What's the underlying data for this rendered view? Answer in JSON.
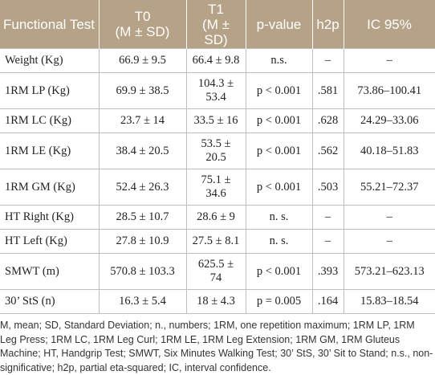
{
  "table": {
    "header": [
      "Functional Test",
      "T0\n(M ± SD)",
      "T1\n(M ± SD)",
      "p-value",
      "h2p",
      "IC 95%"
    ],
    "rows": [
      [
        "Weight (Kg)",
        "66.9 ± 9.5",
        "66.4 ± 9.8",
        "n.s.",
        "–",
        "–"
      ],
      [
        "1RM LP (Kg)",
        "69.9 ± 38.5",
        "104.3 ± 53.4",
        "p < 0.001",
        ".581",
        "73.86–100.41"
      ],
      [
        "1RM LC (Kg)",
        "23.7 ± 14",
        "33.5 ± 16",
        "p < 0.001",
        ".628",
        "24.29–33.06"
      ],
      [
        "1RM LE (Kg)",
        "38.4 ± 20.5",
        "53.5 ± 20.5",
        "p < 0.001",
        ".562",
        "40.18–51.83"
      ],
      [
        "1RM GM (Kg)",
        "52.4 ± 26.3",
        "75.1 ± 34.6",
        "p < 0.001",
        ".503",
        "55.21–72.37"
      ],
      [
        "HT Right (Kg)",
        "28.5 ± 10.7",
        "28.6 ± 9",
        "n. s.",
        "–",
        "–"
      ],
      [
        "HT Left (Kg)",
        "27.8 ± 10.9",
        "27.5 ± 8.1",
        "n. s.",
        "–",
        "–"
      ],
      [
        "SMWT (m)",
        "570.8 ± 103.3",
        "625.5 ± 74",
        "p < 0.001",
        ".393",
        "573.21–623.13"
      ],
      [
        "30’ StS (n)",
        "16.3 ± 5.4",
        "18 ± 4.3",
        "p = 0.005",
        ".164",
        "15.83–18.54"
      ]
    ]
  },
  "caption": "M, mean; SD, Standard Deviation; n., numbers; 1RM, one repetition maximum; 1RM LP, 1RM Leg Press; 1RM LC, 1RM Leg Curl; 1RM LE, 1RM Leg Extension; 1RM GM, 1RM Gluteus Machine; HT, Handgrip Test; SMWT, Six Minutes Walking Test; 30’ StS, 30’ Sit to Stand; n.s., non-significative; h2p, partial eta-squared; IC, interval confidence."
}
